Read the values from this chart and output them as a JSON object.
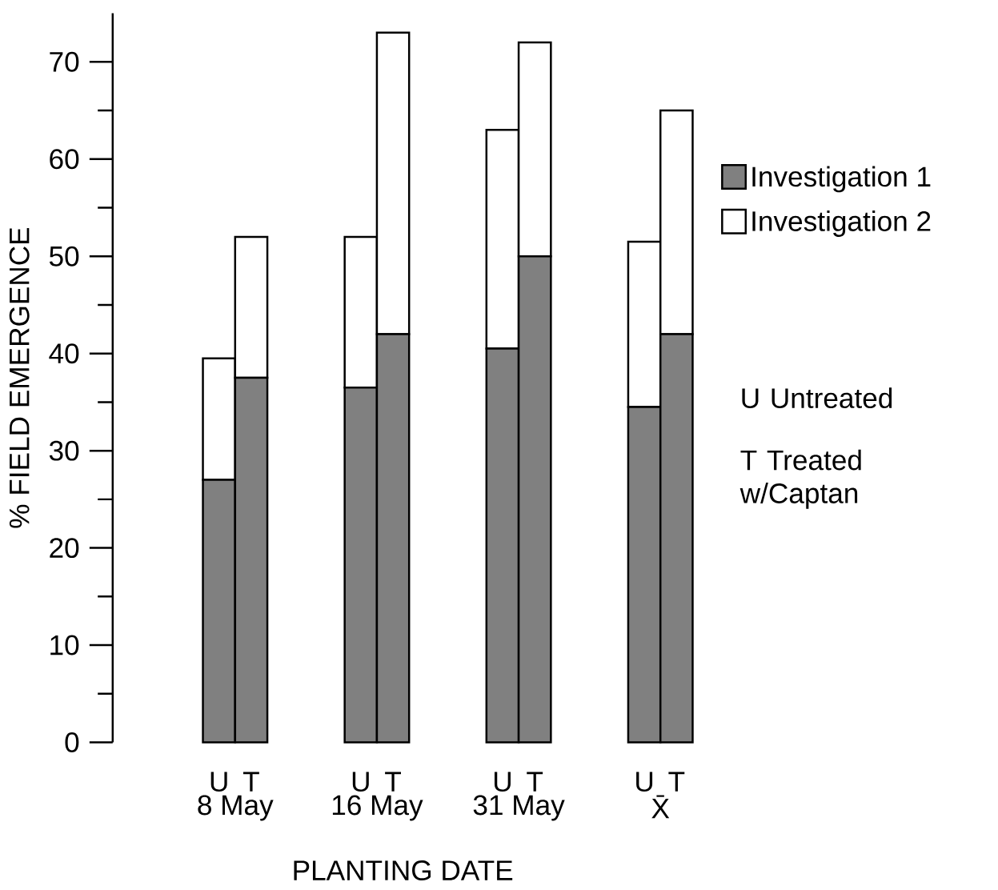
{
  "chart_data": {
    "type": "bar",
    "stacked": true,
    "ylabel": "% FIELD EMERGENCE",
    "xlabel": "PLANTING DATE",
    "categories": [
      "U",
      "T",
      "U",
      "T",
      "U",
      "T",
      "U",
      "T"
    ],
    "series": [
      {
        "name": "Investigation 1",
        "color": "#808080",
        "values": [
          27,
          37.5,
          36.5,
          42,
          40.5,
          50,
          34.5,
          42
        ]
      },
      {
        "name": "Investigation 2",
        "color": "#ffffff",
        "values": [
          12.5,
          14.5,
          15.5,
          31,
          22.5,
          22,
          17,
          23
        ]
      }
    ],
    "ylim": [
      0,
      75
    ],
    "yticks": [
      0,
      10,
      20,
      30,
      40,
      50,
      60,
      70
    ],
    "legend": "right",
    "annotations": [
      "8 May",
      "16 May",
      "31 May",
      "X̄",
      "U Untreated",
      "T Treated w/Captan"
    ]
  }
}
